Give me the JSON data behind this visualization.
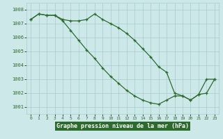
{
  "line1": [
    1007.3,
    1007.7,
    1007.6,
    1007.6,
    1007.2,
    1006.5,
    1005.8,
    1005.1,
    1004.5,
    1003.8,
    1003.2,
    1002.7,
    1002.2,
    1001.8,
    1001.5,
    1001.3,
    1001.2,
    1001.5,
    1001.8,
    1001.8,
    1001.5,
    1001.9,
    1003.0,
    1003.0
  ],
  "line2": [
    1007.3,
    1007.7,
    1007.6,
    1007.6,
    1007.3,
    1007.2,
    1007.2,
    1007.3,
    1007.7,
    1007.3,
    1007.0,
    1006.7,
    1006.3,
    1005.8,
    1005.2,
    1004.6,
    1003.9,
    1003.5,
    1002.0,
    1001.8,
    1001.5,
    1001.9,
    1002.0,
    1003.0
  ],
  "hours": [
    0,
    1,
    2,
    3,
    4,
    5,
    6,
    7,
    8,
    9,
    10,
    11,
    12,
    13,
    14,
    15,
    16,
    17,
    18,
    19,
    20,
    21,
    22,
    23
  ],
  "ylim_min": 1000.5,
  "ylim_max": 1008.5,
  "yticks": [
    1001,
    1002,
    1003,
    1004,
    1005,
    1006,
    1007,
    1008
  ],
  "line_color": "#2d6a2d",
  "bg_color": "#cde8e8",
  "grid_color": "#a8cccc",
  "xlabel": "Graphe pression niveau de la mer (hPa)",
  "xlabel_bg": "#2d6a2d",
  "xlabel_fg": "#ffffff"
}
